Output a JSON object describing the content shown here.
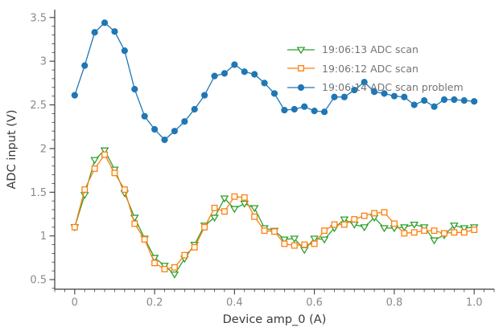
{
  "figure": {
    "background": "#ffffff"
  },
  "style": {
    "spine_color": "#3d3d3d",
    "tick_color": "#3d3d3d",
    "tick_label_color": "#8a8a8a",
    "axis_label_color": "#3a3a3a",
    "legend_text_color": "#747474"
  },
  "labels": {
    "xlabel": "Device amp_0 (A)",
    "ylabel": "ADC input (V)"
  },
  "chart_data": {
    "type": "line",
    "title": "",
    "xlabel": "Device amp_0 (A)",
    "ylabel": "ADC input (V)",
    "xlim": [
      -0.05,
      1.05
    ],
    "ylim": [
      0.39,
      3.59
    ],
    "grid": false,
    "legend_position": "upper right inside, frameless",
    "x_ticks": [
      0,
      0.2,
      0.4,
      0.6,
      0.8,
      1.0
    ],
    "x_tick_labels": [
      "0",
      "0.2",
      "0.4",
      "0.6",
      "0.8",
      "1.0"
    ],
    "y_ticks": [
      0.5,
      1,
      1.5,
      2,
      2.5,
      3,
      3.5
    ],
    "y_tick_labels": [
      "0.5",
      "1",
      "1.5",
      "2",
      "2.5",
      "3",
      "3.5"
    ],
    "x_minor_step": 0.025,
    "y_minor_step": 0.1,
    "x": [
      0,
      0.025,
      0.05,
      0.075,
      0.1,
      0.125,
      0.15,
      0.175,
      0.2,
      0.225,
      0.25,
      0.275,
      0.3,
      0.325,
      0.35,
      0.375,
      0.4,
      0.425,
      0.45,
      0.475,
      0.5,
      0.525,
      0.55,
      0.575,
      0.6,
      0.625,
      0.65,
      0.675,
      0.7,
      0.725,
      0.75,
      0.775,
      0.8,
      0.825,
      0.85,
      0.875,
      0.9,
      0.925,
      0.95,
      0.975,
      1.0
    ],
    "series": [
      {
        "name": "19:06:13 ADC scan",
        "color": "#2ca02c",
        "marker": "triangle-down",
        "marker_fill": "hollow",
        "values": [
          1.1,
          1.47,
          1.87,
          1.98,
          1.76,
          1.49,
          1.21,
          0.97,
          0.75,
          0.66,
          0.56,
          0.74,
          0.9,
          1.12,
          1.21,
          1.43,
          1.31,
          1.37,
          1.32,
          1.09,
          1.06,
          0.96,
          0.97,
          0.84,
          0.97,
          0.96,
          1.09,
          1.19,
          1.13,
          1.1,
          1.21,
          1.09,
          1.09,
          1.1,
          1.13,
          1.1,
          0.95,
          1.01,
          1.12,
          1.09,
          1.1
        ]
      },
      {
        "name": "19:06:12 ADC scan",
        "color": "#ff7f0e",
        "marker": "square",
        "marker_fill": "hollow",
        "values": [
          1.1,
          1.53,
          1.77,
          1.93,
          1.72,
          1.53,
          1.14,
          0.96,
          0.69,
          0.62,
          0.64,
          0.78,
          0.87,
          1.1,
          1.32,
          1.28,
          1.45,
          1.44,
          1.22,
          1.06,
          1.05,
          0.91,
          0.89,
          0.9,
          0.91,
          1.06,
          1.13,
          1.13,
          1.19,
          1.23,
          1.26,
          1.27,
          1.14,
          1.03,
          1.04,
          1.06,
          1.06,
          1.03,
          1.04,
          1.04,
          1.07
        ]
      },
      {
        "name": "19:06:14 ADC scan problem",
        "color": "#1f77b4",
        "marker": "circle",
        "marker_fill": "solid",
        "values": [
          2.61,
          2.95,
          3.33,
          3.44,
          3.34,
          3.12,
          2.68,
          2.37,
          2.22,
          2.1,
          2.2,
          2.31,
          2.45,
          2.61,
          2.83,
          2.86,
          2.96,
          2.88,
          2.85,
          2.75,
          2.63,
          2.44,
          2.45,
          2.48,
          2.43,
          2.42,
          2.59,
          2.59,
          2.67,
          2.76,
          2.65,
          2.63,
          2.6,
          2.59,
          2.5,
          2.55,
          2.48,
          2.56,
          2.56,
          2.55,
          2.54
        ]
      }
    ]
  }
}
